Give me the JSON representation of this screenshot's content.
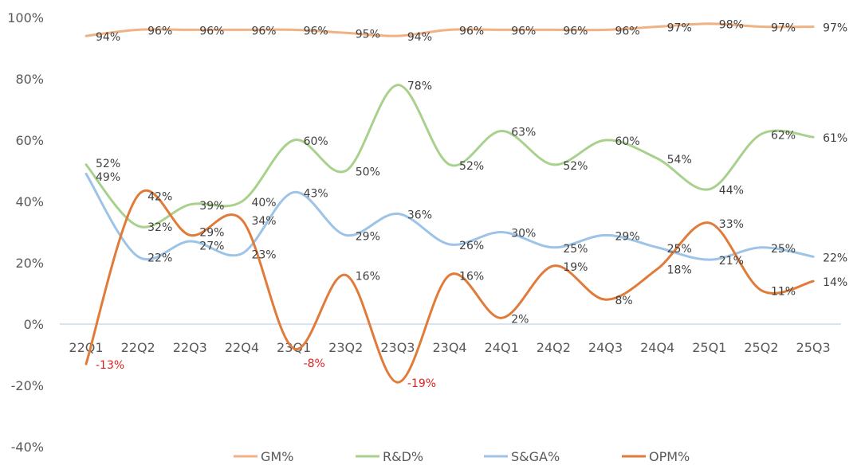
{
  "chart_data": {
    "type": "line",
    "title": "",
    "xlabel": "",
    "ylabel": "",
    "ylim": [
      -40,
      100
    ],
    "yticks": [
      "100%",
      "80%",
      "60%",
      "40%",
      "20%",
      "0%",
      "-20%",
      "-40%"
    ],
    "ytick_values": [
      100,
      80,
      60,
      40,
      20,
      0,
      -20,
      -40
    ],
    "categories": [
      "22Q1",
      "22Q2",
      "22Q3",
      "22Q4",
      "23Q1",
      "23Q2",
      "23Q3",
      "23Q4",
      "24Q1",
      "24Q2",
      "24Q3",
      "24Q4",
      "25Q1",
      "25Q2",
      "25Q3"
    ],
    "smooth": true,
    "legend_position": "bottom",
    "negative_label_color": "#e02020",
    "series": [
      {
        "name": "GM%",
        "color": "#f0b183",
        "values": [
          94,
          96,
          96,
          96,
          96,
          95,
          94,
          96,
          96,
          96,
          96,
          97,
          98,
          97,
          97
        ]
      },
      {
        "name": "R&D%",
        "color": "#a9d18e",
        "values": [
          52,
          32,
          39,
          40,
          60,
          50,
          78,
          52,
          63,
          52,
          60,
          54,
          44,
          62,
          61
        ]
      },
      {
        "name": "S&GA%",
        "color": "#9dc3e6",
        "values": [
          49,
          22,
          27,
          23,
          43,
          29,
          36,
          26,
          30,
          25,
          29,
          25,
          21,
          25,
          22
        ]
      },
      {
        "name": "OPM%",
        "color": "#e07b39",
        "values": [
          -13,
          42,
          29,
          34,
          -8,
          16,
          -19,
          16,
          2,
          19,
          8,
          18,
          33,
          11,
          14
        ]
      }
    ]
  }
}
